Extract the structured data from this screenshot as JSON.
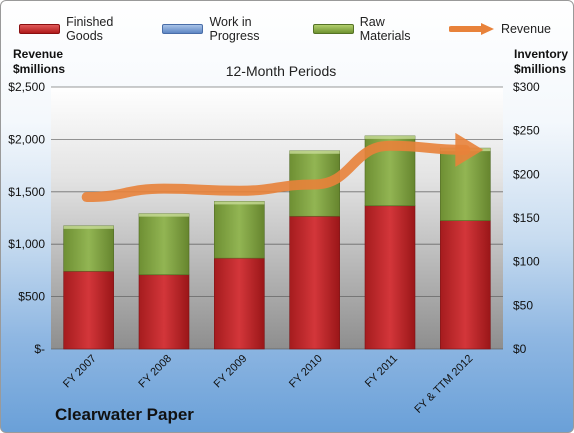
{
  "legend": {
    "finished_goods": "Finished Goods",
    "work_in_progress": "Work in Progress",
    "raw_materials": "Raw Materials",
    "revenue": "Revenue"
  },
  "left_axis_title_1": "Revenue",
  "left_axis_title_2": "$millions",
  "right_axis_title_1": "Inventory",
  "right_axis_title_2": "$millions",
  "period_label": "12-Month Periods",
  "company": "Clearwater Paper",
  "colors": {
    "finished_goods": "#c0282a",
    "work_in_progress": "#6d90c8",
    "raw_materials": "#86a943",
    "revenue": "#e8823a"
  },
  "chart_data": {
    "type": "bar",
    "stacked": true,
    "categories": [
      "FY 2007",
      "FY 2008",
      "FY 2009",
      "FY 2010",
      "FY 2011",
      "FY & TTM 2012"
    ],
    "series": [
      {
        "name": "Finished Goods",
        "axis": "right",
        "values": [
          89,
          85,
          104,
          152,
          164,
          147
        ]
      },
      {
        "name": "Work in Progress",
        "axis": "right",
        "values": [
          0,
          0,
          0,
          0,
          0,
          0
        ]
      },
      {
        "name": "Raw Materials",
        "axis": "right",
        "values": [
          52,
          70,
          65,
          75,
          80,
          83
        ]
      },
      {
        "name": "Revenue",
        "type": "line",
        "axis": "left",
        "values": [
          1450,
          1530,
          1510,
          1570,
          1940,
          1900
        ]
      }
    ],
    "left_axis": {
      "ylim": [
        0,
        2500
      ],
      "ticks": [
        "$-",
        "$500",
        "$1,000",
        "$1,500",
        "$2,000",
        "$2,500"
      ]
    },
    "right_axis": {
      "ylim": [
        0,
        300
      ],
      "ticks": [
        "$0",
        "$50",
        "$100",
        "$150",
        "$200",
        "$250",
        "$300"
      ]
    },
    "grid": true,
    "legend_position": "top"
  }
}
